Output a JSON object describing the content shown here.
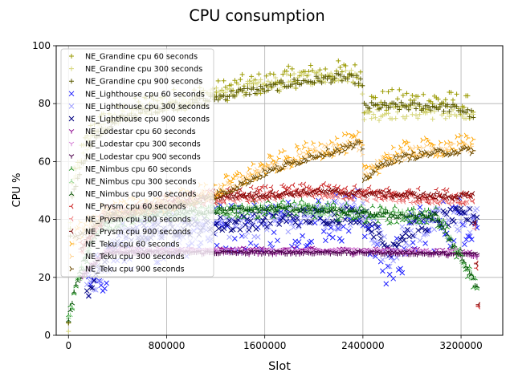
{
  "chart_data": {
    "type": "scatter",
    "title": "CPU consumption",
    "xlabel": "Slot",
    "ylabel": "CPU %",
    "xlim": [
      -100000,
      3540000
    ],
    "ylim": [
      0,
      100
    ],
    "xticks": [
      0,
      800000,
      1600000,
      2400000,
      3200000
    ],
    "xtick_labels": [
      "0",
      "800000",
      "1600000",
      "2400000",
      "3200000"
    ],
    "yticks": [
      0,
      20,
      40,
      60,
      80,
      100
    ],
    "ytick_labels": [
      "0",
      "20",
      "40",
      "60",
      "80",
      "100"
    ],
    "grid": true,
    "legend_position": "upper-left",
    "series": [
      {
        "name": "NE_Grandine cpu 60 seconds",
        "color": "#9a9a00",
        "marker": "plus",
        "noise": 4,
        "points": [
          [
            0,
            3
          ],
          [
            20000,
            50
          ],
          [
            100000,
            62
          ],
          [
            200000,
            72
          ],
          [
            400000,
            76
          ],
          [
            600000,
            79
          ],
          [
            800000,
            81
          ],
          [
            1000000,
            82
          ],
          [
            1200000,
            84
          ],
          [
            1400000,
            86
          ],
          [
            1600000,
            87
          ],
          [
            1800000,
            89
          ],
          [
            2000000,
            90
          ],
          [
            2200000,
            91
          ],
          [
            2390000,
            90
          ],
          [
            2410000,
            80
          ],
          [
            2600000,
            81
          ],
          [
            2800000,
            81
          ],
          [
            3000000,
            81
          ],
          [
            3200000,
            80
          ],
          [
            3300000,
            78
          ]
        ]
      },
      {
        "name": "NE_Grandine cpu 300 seconds",
        "color": "#d6d67a",
        "marker": "plus",
        "noise": 2.5,
        "points": [
          [
            0,
            3
          ],
          [
            20000,
            48
          ],
          [
            100000,
            60
          ],
          [
            200000,
            70
          ],
          [
            400000,
            75
          ],
          [
            600000,
            78
          ],
          [
            800000,
            80
          ],
          [
            1000000,
            81
          ],
          [
            1200000,
            83
          ],
          [
            1400000,
            85
          ],
          [
            1600000,
            86
          ],
          [
            1800000,
            88
          ],
          [
            2000000,
            89
          ],
          [
            2200000,
            90
          ],
          [
            2390000,
            89
          ],
          [
            2410000,
            76
          ],
          [
            2600000,
            77
          ],
          [
            2800000,
            77
          ],
          [
            3000000,
            77
          ],
          [
            3200000,
            76
          ],
          [
            3300000,
            74
          ]
        ]
      },
      {
        "name": "NE_Grandine cpu 900 seconds",
        "color": "#5a5a00",
        "marker": "plus",
        "noise": 1.5,
        "points": [
          [
            0,
            3
          ],
          [
            20000,
            46
          ],
          [
            100000,
            58
          ],
          [
            200000,
            68
          ],
          [
            400000,
            74
          ],
          [
            600000,
            77
          ],
          [
            800000,
            79
          ],
          [
            1000000,
            80
          ],
          [
            1200000,
            82
          ],
          [
            1400000,
            84
          ],
          [
            1600000,
            85
          ],
          [
            1800000,
            87
          ],
          [
            2000000,
            88
          ],
          [
            2200000,
            89
          ],
          [
            2390000,
            88
          ],
          [
            2410000,
            79
          ],
          [
            2600000,
            79
          ],
          [
            2800000,
            79
          ],
          [
            3000000,
            79
          ],
          [
            3200000,
            78
          ],
          [
            3300000,
            76
          ]
        ]
      },
      {
        "name": "NE_Lighthouse cpu 60 seconds",
        "color": "#2020ff",
        "marker": "x",
        "noise": 9,
        "points": [
          [
            150000,
            15
          ],
          [
            400000,
            30
          ],
          [
            800000,
            35
          ],
          [
            1200000,
            37
          ],
          [
            1600000,
            38
          ],
          [
            2000000,
            40
          ],
          [
            2400000,
            42
          ],
          [
            2600000,
            22
          ],
          [
            2800000,
            35
          ],
          [
            3000000,
            38
          ],
          [
            3200000,
            40
          ],
          [
            3330000,
            40
          ]
        ]
      },
      {
        "name": "NE_Lighthouse cpu 300 seconds",
        "color": "#a0a0ff",
        "marker": "x",
        "noise": 5,
        "points": [
          [
            150000,
            15
          ],
          [
            400000,
            32
          ],
          [
            800000,
            36
          ],
          [
            1200000,
            38
          ],
          [
            1600000,
            39
          ],
          [
            2000000,
            41
          ],
          [
            2400000,
            42
          ],
          [
            2600000,
            28
          ],
          [
            2800000,
            36
          ],
          [
            3000000,
            39
          ],
          [
            3200000,
            40
          ],
          [
            3330000,
            40
          ]
        ]
      },
      {
        "name": "NE_Lighthouse cpu 900 seconds",
        "color": "#000080",
        "marker": "x",
        "noise": 3,
        "points": [
          [
            150000,
            15
          ],
          [
            400000,
            33
          ],
          [
            800000,
            37
          ],
          [
            1200000,
            38
          ],
          [
            1600000,
            40
          ],
          [
            2000000,
            41
          ],
          [
            2400000,
            42
          ],
          [
            2600000,
            30
          ],
          [
            2800000,
            37
          ],
          [
            3000000,
            40
          ],
          [
            3200000,
            41
          ],
          [
            3330000,
            41
          ]
        ]
      },
      {
        "name": "NE_Lodestar cpu 60 seconds",
        "color": "#8b008b",
        "marker": "tri_down",
        "noise": 1.2,
        "points": [
          [
            100000,
            20
          ],
          [
            300000,
            29
          ],
          [
            800000,
            29
          ],
          [
            1600000,
            29
          ],
          [
            2400000,
            29
          ],
          [
            3200000,
            28.5
          ],
          [
            3330000,
            28
          ]
        ]
      },
      {
        "name": "NE_Lodestar cpu 300 seconds",
        "color": "#d580d5",
        "marker": "tri_down",
        "noise": 0.8,
        "points": [
          [
            100000,
            20
          ],
          [
            300000,
            29
          ],
          [
            800000,
            29
          ],
          [
            1600000,
            29
          ],
          [
            2400000,
            29
          ],
          [
            3200000,
            28.5
          ],
          [
            3330000,
            28
          ]
        ]
      },
      {
        "name": "NE_Lodestar cpu 900 seconds",
        "color": "#4b004b",
        "marker": "tri_down",
        "noise": 0.5,
        "points": [
          [
            100000,
            20
          ],
          [
            300000,
            28.5
          ],
          [
            800000,
            28.5
          ],
          [
            1600000,
            28.5
          ],
          [
            2400000,
            28.5
          ],
          [
            3200000,
            28
          ],
          [
            3330000,
            28
          ]
        ]
      },
      {
        "name": "NE_Nimbus cpu 60 seconds",
        "color": "#1a8c1a",
        "marker": "tri_up",
        "noise": 3,
        "points": [
          [
            0,
            5
          ],
          [
            50000,
            15
          ],
          [
            120000,
            25
          ],
          [
            250000,
            38
          ],
          [
            600000,
            42
          ],
          [
            1200000,
            43
          ],
          [
            1800000,
            44
          ],
          [
            2400000,
            42
          ],
          [
            3000000,
            41
          ],
          [
            3330000,
            17
          ]
        ]
      },
      {
        "name": "NE_Nimbus cpu 300 seconds",
        "color": "#8fd48f",
        "marker": "tri_up",
        "noise": 1.5,
        "points": [
          [
            0,
            5
          ],
          [
            50000,
            15
          ],
          [
            120000,
            25
          ],
          [
            250000,
            38
          ],
          [
            600000,
            42
          ],
          [
            1200000,
            43
          ],
          [
            1800000,
            44
          ],
          [
            2400000,
            42
          ],
          [
            3000000,
            41
          ],
          [
            3330000,
            17
          ]
        ]
      },
      {
        "name": "NE_Nimbus cpu 900 seconds",
        "color": "#004d00",
        "marker": "tri_up",
        "noise": 1,
        "points": [
          [
            0,
            5
          ],
          [
            50000,
            15
          ],
          [
            120000,
            25
          ],
          [
            250000,
            38
          ],
          [
            600000,
            42
          ],
          [
            1200000,
            43
          ],
          [
            1800000,
            44
          ],
          [
            2400000,
            42
          ],
          [
            3000000,
            41
          ],
          [
            3330000,
            17
          ]
        ]
      },
      {
        "name": "NE_Prysm cpu 60 seconds",
        "color": "#cc2222",
        "marker": "tri_left",
        "noise": 2.5,
        "points": [
          [
            100000,
            30
          ],
          [
            300000,
            42
          ],
          [
            800000,
            46
          ],
          [
            1200000,
            48
          ],
          [
            1600000,
            49
          ],
          [
            2000000,
            50
          ],
          [
            2400000,
            49
          ],
          [
            3000000,
            48
          ],
          [
            3300000,
            48
          ],
          [
            3340000,
            10
          ]
        ]
      },
      {
        "name": "NE_Prysm cpu 300 seconds",
        "color": "#f08080",
        "marker": "tri_left",
        "noise": 1.5,
        "points": [
          [
            100000,
            30
          ],
          [
            300000,
            41
          ],
          [
            800000,
            45
          ],
          [
            1200000,
            47
          ],
          [
            1600000,
            48
          ],
          [
            2000000,
            49
          ],
          [
            2400000,
            48
          ],
          [
            3000000,
            47
          ],
          [
            3300000,
            47
          ],
          [
            3340000,
            11
          ]
        ]
      },
      {
        "name": "NE_Prysm cpu 900 seconds",
        "color": "#7a0000",
        "marker": "tri_left",
        "noise": 1,
        "points": [
          [
            100000,
            30
          ],
          [
            300000,
            41
          ],
          [
            800000,
            46
          ],
          [
            1200000,
            48
          ],
          [
            1600000,
            48.5
          ],
          [
            2000000,
            49.5
          ],
          [
            2400000,
            49
          ],
          [
            3000000,
            48
          ],
          [
            3300000,
            48
          ],
          [
            3340000,
            11
          ]
        ]
      },
      {
        "name": "NE_Teku cpu 60 seconds",
        "color": "#ffa500",
        "marker": "tri_right",
        "noise": 3.5,
        "points": [
          [
            50000,
            35
          ],
          [
            300000,
            43
          ],
          [
            800000,
            46
          ],
          [
            1200000,
            50
          ],
          [
            1600000,
            58
          ],
          [
            2000000,
            64
          ],
          [
            2390000,
            67
          ],
          [
            2410000,
            55
          ],
          [
            2600000,
            62
          ],
          [
            2800000,
            64
          ],
          [
            3000000,
            65
          ],
          [
            3300000,
            66
          ]
        ]
      },
      {
        "name": "NE_Teku cpu 300 seconds",
        "color": "#ffd08a",
        "marker": "tri_right",
        "noise": 2,
        "points": [
          [
            50000,
            34
          ],
          [
            300000,
            42
          ],
          [
            800000,
            45
          ],
          [
            1200000,
            49
          ],
          [
            1600000,
            57
          ],
          [
            2000000,
            63
          ],
          [
            2390000,
            66
          ],
          [
            2410000,
            55
          ],
          [
            2600000,
            61
          ],
          [
            2800000,
            63
          ],
          [
            3000000,
            64
          ],
          [
            3300000,
            65
          ]
        ]
      },
      {
        "name": "NE_Teku cpu 900 seconds",
        "color": "#6b4a00",
        "marker": "tri_right",
        "noise": 1.2,
        "points": [
          [
            50000,
            33
          ],
          [
            300000,
            41
          ],
          [
            800000,
            44
          ],
          [
            1200000,
            48
          ],
          [
            1600000,
            56
          ],
          [
            2000000,
            62
          ],
          [
            2390000,
            66
          ],
          [
            2410000,
            54
          ],
          [
            2600000,
            60
          ],
          [
            2800000,
            62
          ],
          [
            3000000,
            63
          ],
          [
            3300000,
            64
          ]
        ]
      }
    ]
  }
}
